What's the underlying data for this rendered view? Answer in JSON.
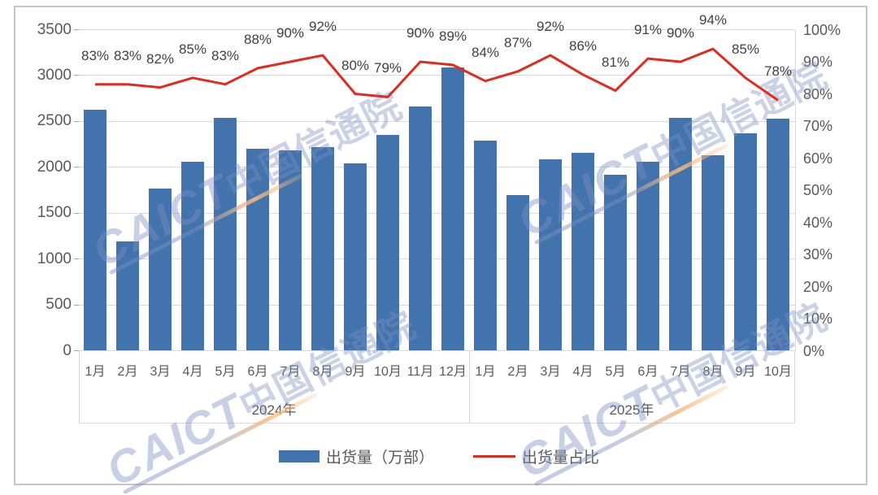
{
  "watermark": {
    "en": "CAICT",
    "cn": "中国信通院"
  },
  "legend": [
    {
      "label": "出货量（万部）",
      "marker": "bar-swatch"
    },
    {
      "label": "出货量占比",
      "marker": "line-swatch"
    }
  ],
  "colors": {
    "bar": "#4273AD",
    "line": "#E02B20",
    "grid": "#D9D9D9",
    "axis_text": "#595959",
    "data_label_text": "#404040",
    "frame_border": "#C5C5C5"
  },
  "chart_data": {
    "type": "bar",
    "subtype": "combo-bar-line-dual-axis",
    "groups": [
      {
        "year": "2024年",
        "months": [
          "1月",
          "2月",
          "3月",
          "4月",
          "5月",
          "6月",
          "7月",
          "8月",
          "9月",
          "10月",
          "11月",
          "12月"
        ]
      },
      {
        "year": "2025年",
        "months": [
          "1月",
          "2月",
          "3月",
          "4月",
          "5月",
          "6月",
          "7月",
          "8月",
          "9月",
          "10月"
        ]
      }
    ],
    "series": [
      {
        "name": "出货量（万部）",
        "type": "bar",
        "axis": "left",
        "values": [
          2630,
          1190,
          1770,
          2060,
          2540,
          2200,
          2180,
          2220,
          2040,
          2350,
          2660,
          3090,
          2290,
          1700,
          2090,
          2160,
          1920,
          2060,
          2540,
          2130,
          2370,
          2530
        ]
      },
      {
        "name": "出货量占比",
        "type": "line",
        "axis": "right",
        "values_percent": [
          83,
          83,
          82,
          85,
          83,
          88,
          90,
          92,
          80,
          79,
          90,
          89,
          84,
          87,
          92,
          86,
          81,
          91,
          90,
          94,
          85,
          78
        ],
        "data_labels": [
          "83%",
          "83%",
          "82%",
          "85%",
          "83%",
          "88%",
          "90%",
          "92%",
          "80%",
          "79%",
          "90%",
          "89%",
          "84%",
          "87%",
          "92%",
          "86%",
          "81%",
          "91%",
          "90%",
          "94%",
          "85%",
          "78%"
        ]
      }
    ],
    "left_axis": {
      "min": 0,
      "max": 3500,
      "step": 500,
      "ticks": [
        "3500",
        "3000",
        "2500",
        "2000",
        "1500",
        "1000",
        "500",
        "0"
      ]
    },
    "right_axis": {
      "min": 0,
      "max": 100,
      "step": 10,
      "ticks": [
        "100%",
        "90%",
        "80%",
        "70%",
        "60%",
        "50%",
        "40%",
        "30%",
        "20%",
        "10%",
        "0%"
      ]
    },
    "grid": true,
    "legend_position": "bottom"
  }
}
